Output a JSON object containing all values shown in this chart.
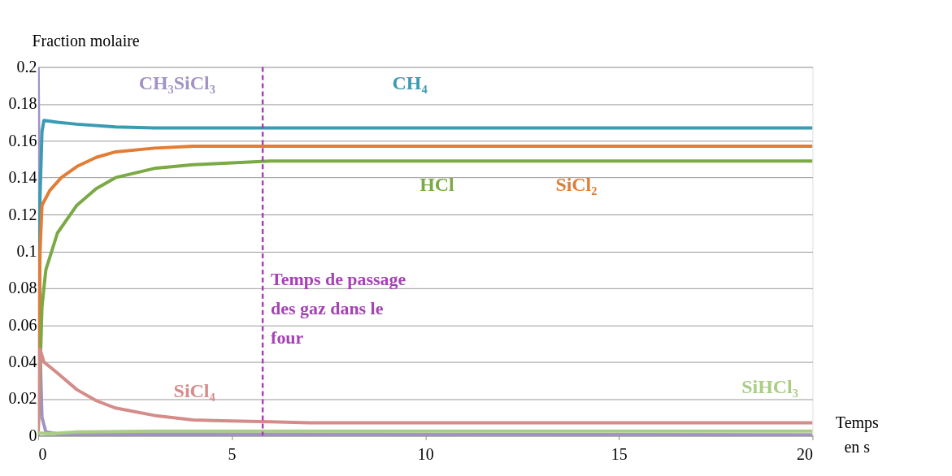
{
  "chart_data": {
    "type": "line",
    "xlabel": "Temps en s",
    "ylabel": "Fraction molaire",
    "xlim": [
      0,
      20
    ],
    "xticks": [
      0,
      5,
      10,
      15,
      20
    ],
    "ylim": [
      0,
      0.2
    ],
    "yticks": [
      0,
      0.02,
      0.04,
      0.06,
      0.08,
      0.1,
      0.12,
      0.14,
      0.16,
      0.18,
      0.2
    ],
    "grid": "y",
    "marker": "none",
    "line_style": "solid",
    "ref_lines": [
      {
        "axis": "x",
        "value": 5.8,
        "label": "Temps de passage des gaz dans le four",
        "color": "#a542b4",
        "line_style": "dashed"
      }
    ],
    "series": [
      {
        "name": "CH₃SiCl₃",
        "color": "#a193c4",
        "x": [
          0,
          0.03,
          0.06,
          0.1,
          0.2,
          0.5,
          20
        ],
        "values": [
          0.2,
          0.12,
          0.04,
          0.01,
          0.002,
          0.001,
          0.0005
        ]
      },
      {
        "name": "CH₄",
        "color": "#3b9bb3",
        "x": [
          0,
          0.05,
          0.1,
          0.15,
          0.5,
          1,
          2,
          3,
          5,
          20
        ],
        "values": [
          0,
          0.13,
          0.165,
          0.171,
          0.17,
          0.169,
          0.1675,
          0.167,
          0.167,
          0.167
        ]
      },
      {
        "name": "SiCl₂",
        "color": "#e27d35",
        "x": [
          0,
          0.05,
          0.1,
          0.3,
          0.6,
          1,
          1.5,
          2,
          3,
          4,
          20
        ],
        "values": [
          0.025,
          0.1,
          0.125,
          0.133,
          0.14,
          0.146,
          0.151,
          0.154,
          0.156,
          0.157,
          0.157
        ]
      },
      {
        "name": "HCl",
        "color": "#7ba944",
        "x": [
          0,
          0.1,
          0.2,
          0.5,
          1,
          1.5,
          2,
          3,
          4,
          6,
          20
        ],
        "values": [
          0,
          0.07,
          0.09,
          0.11,
          0.125,
          0.134,
          0.14,
          0.145,
          0.147,
          0.149,
          0.149
        ]
      },
      {
        "name": "SiCl₄",
        "color": "#d48c8a",
        "x": [
          0,
          0.05,
          0.15,
          0.5,
          1,
          1.5,
          2,
          3,
          4,
          5,
          6,
          7,
          20
        ],
        "values": [
          0,
          0.047,
          0.04,
          0.034,
          0.025,
          0.019,
          0.015,
          0.011,
          0.0085,
          0.008,
          0.0075,
          0.007,
          0.007
        ]
      },
      {
        "name": "SiHCl₃",
        "color": "#a9cd84",
        "x": [
          0,
          0.3,
          1,
          3,
          20
        ],
        "values": [
          0.0015,
          0.001,
          0.002,
          0.0025,
          0.0025
        ]
      }
    ]
  }
}
